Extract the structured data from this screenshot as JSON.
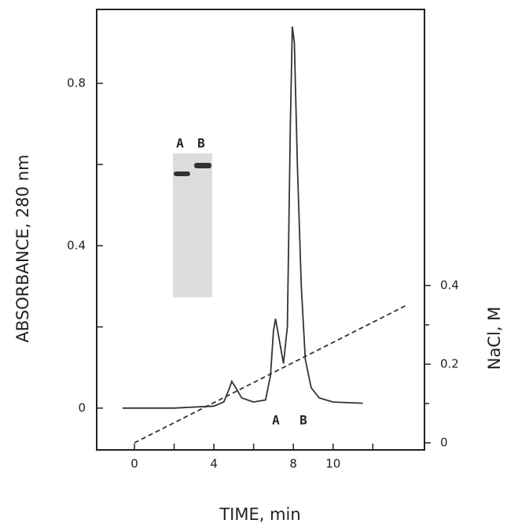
{
  "chart_data": {
    "type": "line",
    "xlabel": "TIME,  min",
    "ylabel": "ABSORBANCE,  280 nm",
    "y2label": "NaCl,  M",
    "xlim": [
      -1.9,
      14.6
    ],
    "ylim": [
      -0.103,
      0.982
    ],
    "y2lim": [
      -0.018,
      1.102
    ],
    "xticks": [
      0,
      4,
      8,
      10
    ],
    "yticks": [
      0,
      0.4,
      0.8
    ],
    "y2ticks": [
      0,
      0.2,
      0.4
    ],
    "xminor_ticks": [
      2,
      6,
      12
    ],
    "yminor_ticks": [
      0.2,
      0.6
    ],
    "y2minor_ticks": [
      0.1,
      0.3
    ],
    "series": [
      {
        "x": [
          -0.6,
          2.0,
          4.0,
          4.5,
          4.75,
          4.9,
          5.1,
          5.4,
          6.0,
          6.6,
          6.85,
          7.0,
          7.1,
          7.25,
          7.5,
          7.7,
          7.85,
          7.95,
          8.05,
          8.2,
          8.4,
          8.6,
          8.9,
          9.3,
          10.0,
          11.5
        ],
        "values": [
          0.0,
          0.0,
          0.005,
          0.015,
          0.045,
          0.066,
          0.05,
          0.025,
          0.015,
          0.02,
          0.08,
          0.19,
          0.22,
          0.18,
          0.11,
          0.2,
          0.7,
          0.94,
          0.9,
          0.6,
          0.3,
          0.12,
          0.05,
          0.025,
          0.015,
          0.012
        ],
        "color": "#333333"
      },
      {
        "x": [
          0,
          13.7
        ],
        "values": [
          0,
          0.35
        ],
        "axis": "y2",
        "color": "#333333",
        "dash": true
      }
    ],
    "peak_labels": [
      "A",
      "B"
    ],
    "inset_labels": [
      "A",
      "B"
    ]
  }
}
